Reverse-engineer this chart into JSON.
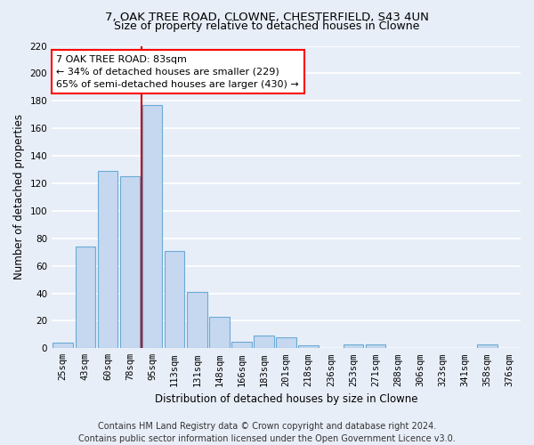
{
  "title1": "7, OAK TREE ROAD, CLOWNE, CHESTERFIELD, S43 4UN",
  "title2": "Size of property relative to detached houses in Clowne",
  "xlabel": "Distribution of detached houses by size in Clowne",
  "ylabel": "Number of detached properties",
  "categories": [
    "25sqm",
    "43sqm",
    "60sqm",
    "78sqm",
    "95sqm",
    "113sqm",
    "131sqm",
    "148sqm",
    "166sqm",
    "183sqm",
    "201sqm",
    "218sqm",
    "236sqm",
    "253sqm",
    "271sqm",
    "288sqm",
    "306sqm",
    "323sqm",
    "341sqm",
    "358sqm",
    "376sqm"
  ],
  "values": [
    4,
    74,
    129,
    125,
    177,
    71,
    41,
    23,
    5,
    9,
    8,
    2,
    0,
    3,
    3,
    0,
    0,
    0,
    0,
    3,
    0
  ],
  "bar_color": "#c5d8f0",
  "bar_edgecolor": "#6aaad4",
  "vline_color": "#cc0000",
  "vline_x_index": 3,
  "annotation_text": "7 OAK TREE ROAD: 83sqm\n← 34% of detached houses are smaller (229)\n65% of semi-detached houses are larger (430) →",
  "annotation_box_color": "white",
  "annotation_box_edgecolor": "red",
  "footer": "Contains HM Land Registry data © Crown copyright and database right 2024.\nContains public sector information licensed under the Open Government Licence v3.0.",
  "ylim": [
    0,
    220
  ],
  "yticks": [
    0,
    20,
    40,
    60,
    80,
    100,
    120,
    140,
    160,
    180,
    200,
    220
  ],
  "background_color": "#e8eef8",
  "grid_color": "#ffffff",
  "title1_fontsize": 9.5,
  "title2_fontsize": 9,
  "axis_label_fontsize": 8.5,
  "tick_fontsize": 7.5,
  "annotation_fontsize": 8,
  "footer_fontsize": 7
}
